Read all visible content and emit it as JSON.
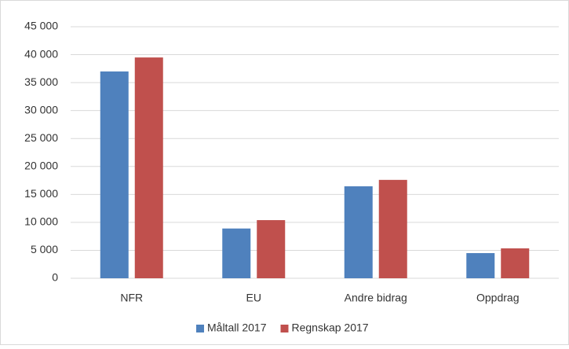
{
  "chart_data": {
    "type": "bar",
    "categories": [
      "NFR",
      "EU",
      "Andre bidrag",
      "Oppdrag"
    ],
    "series": [
      {
        "name": "Måltall 2017",
        "color": "#4f81bd",
        "values": [
          37000,
          8900,
          16450,
          4500
        ]
      },
      {
        "name": "Regnskap 2017",
        "color": "#c0504d",
        "values": [
          39500,
          10400,
          17600,
          5350
        ]
      }
    ],
    "ylim": [
      0,
      45000
    ],
    "yticks": [
      0,
      {
        "value": 5000,
        "label": "5 000"
      },
      {
        "value": 10000,
        "label": "10 000"
      },
      {
        "value": 15000,
        "label": "15 000"
      },
      {
        "value": 20000,
        "label": "20 000"
      },
      {
        "value": 25000,
        "label": "25 000"
      },
      {
        "value": 30000,
        "label": "30 000"
      },
      {
        "value": 35000,
        "label": "35 000"
      },
      {
        "value": 40000,
        "label": "40 000"
      },
      {
        "value": 45000,
        "label": "45 000"
      }
    ],
    "grid": true,
    "legend": "bottom"
  }
}
